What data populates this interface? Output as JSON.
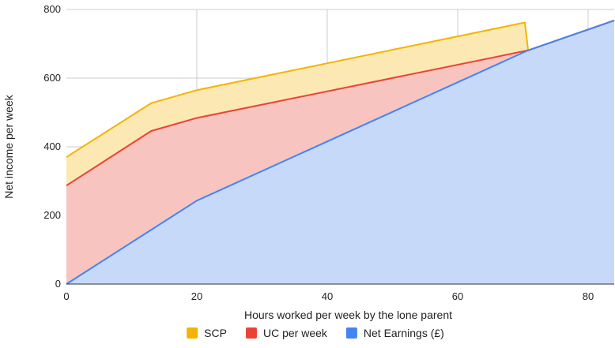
{
  "chart_data": {
    "type": "area",
    "title": "",
    "xlabel": "Hours worked per week by the lone parent",
    "ylabel": "Net income per week",
    "xlim": [
      0,
      84
    ],
    "ylim": [
      0,
      800
    ],
    "xticks": [
      0,
      20,
      40,
      60,
      80
    ],
    "yticks": [
      0,
      200,
      400,
      600,
      800
    ],
    "x_tick_labels": [
      "0",
      "20",
      "40",
      "60",
      "80"
    ],
    "y_tick_labels": [
      "0",
      "200",
      "400",
      "600",
      "800"
    ],
    "stacked": false,
    "grid": true,
    "legend_position": "bottom",
    "series": [
      {
        "name": "SCP",
        "color": "#f4b400",
        "fill": "#fce8b2",
        "points": [
          [
            0,
            370
          ],
          [
            13,
            527
          ],
          [
            20,
            565
          ],
          [
            70.3,
            762
          ],
          [
            70.8,
            681
          ],
          [
            84,
            768
          ]
        ]
      },
      {
        "name": "UC per week",
        "color": "#ea4335",
        "fill": "#f8c4c0",
        "points": [
          [
            0,
            287
          ],
          [
            13,
            446
          ],
          [
            20,
            484
          ],
          [
            70.8,
            681
          ],
          [
            84,
            768
          ]
        ]
      },
      {
        "name": "Net Earnings (£)",
        "color": "#4285f4",
        "fill": "#c6d9f9",
        "points": [
          [
            0,
            0
          ],
          [
            20,
            243
          ],
          [
            70.8,
            681
          ],
          [
            84,
            768
          ]
        ]
      }
    ]
  }
}
